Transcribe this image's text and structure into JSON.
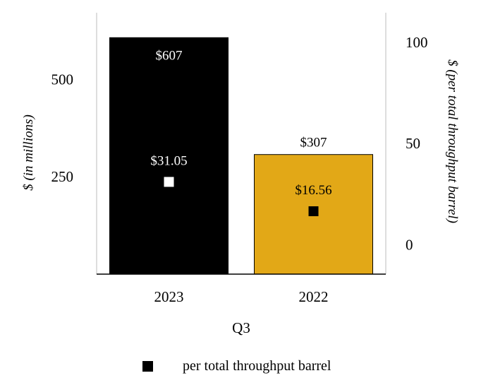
{
  "chart_data": {
    "type": "bar",
    "categories": [
      "2023",
      "2022"
    ],
    "series": [
      {
        "axis": "left",
        "values": [
          607,
          307
        ],
        "labels": [
          "$607",
          "$307"
        ],
        "colors": [
          "#000000",
          "#E2A817"
        ]
      },
      {
        "name": "per total throughput barrel",
        "axis": "right",
        "marker": "square",
        "values": [
          31.05,
          16.56
        ],
        "labels": [
          "$31.05",
          "$16.56"
        ],
        "colors": [
          "#ffffff",
          "#000000"
        ]
      }
    ],
    "xlabel": "Q3",
    "ylabel": "$ (in millions)",
    "y2label": "$ (per total throughput barrel)",
    "ylim": [
      0,
      671
    ],
    "yticks": [
      "250",
      "500"
    ],
    "y2lim": [
      -14.5,
      114.6
    ],
    "y2ticks": [
      "0",
      "50",
      "100"
    ],
    "legend": "bottom"
  }
}
